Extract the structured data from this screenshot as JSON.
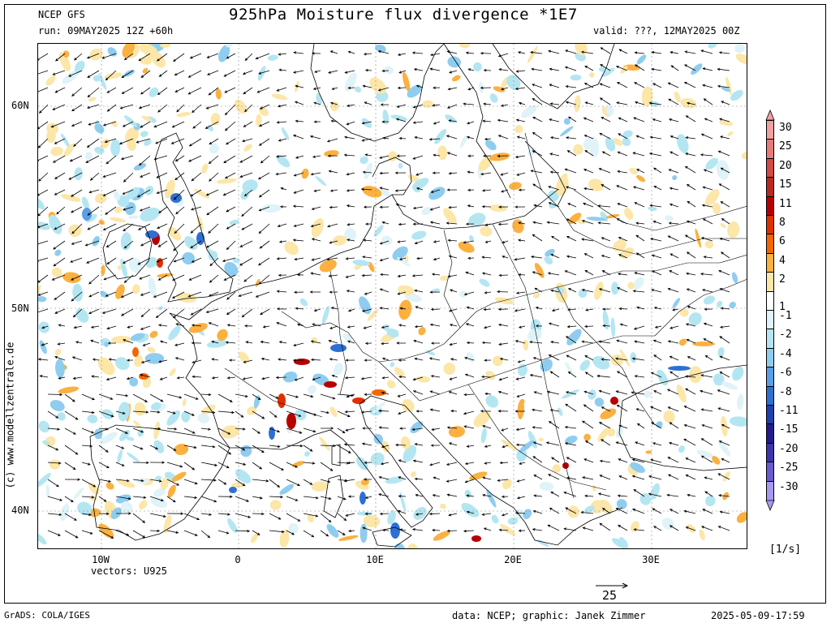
{
  "header": {
    "model": "NCEP GFS",
    "title": "925hPa Moisture flux divergence *1E7",
    "run": "run: 09MAY2025 12Z +60h",
    "valid": "valid: ???, 12MAY2025 00Z"
  },
  "axes": {
    "lat_labels": [
      "60N",
      "50N",
      "40N"
    ],
    "lon_labels": [
      "10W",
      "0",
      "10E",
      "20E",
      "30E"
    ]
  },
  "vectors_label": "vectors: U925",
  "reference_vector": "25",
  "side_credit": "(c) www.modellzentrale.de",
  "colorbar": {
    "unit": "[1/s]",
    "levels": [
      {
        "label": "30",
        "color": "#f0a0a0"
      },
      {
        "label": "25",
        "color": "#e67a78"
      },
      {
        "label": "20",
        "color": "#d44a44"
      },
      {
        "label": "15",
        "color": "#b82820"
      },
      {
        "label": "11",
        "color": "#b80000"
      },
      {
        "label": "8",
        "color": "#e03000"
      },
      {
        "label": "6",
        "color": "#f56500"
      },
      {
        "label": "4",
        "color": "#fbb040"
      },
      {
        "label": "2",
        "color": "#fce6a8"
      },
      {
        "label": "1",
        "color": "#ffffff"
      },
      {
        "label": "-1",
        "color": "#dff3f8"
      },
      {
        "label": "-2",
        "color": "#b4e6f2"
      },
      {
        "label": "-4",
        "color": "#8fcdf0"
      },
      {
        "label": "-6",
        "color": "#5a9ee6"
      },
      {
        "label": "-8",
        "color": "#2e6fd2"
      },
      {
        "label": "-11",
        "color": "#1e3fb0"
      },
      {
        "label": "-15",
        "color": "#231a90"
      },
      {
        "label": "-20",
        "color": "#3a36b0"
      },
      {
        "label": "-25",
        "color": "#6a5ad0"
      },
      {
        "label": "-30",
        "color": "#a898f0"
      }
    ]
  },
  "footer": {
    "left": "GrADS: COLA/IGES",
    "center": "data: NCEP; graphic: Janek Zimmer",
    "right": "2025-05-09-17:59"
  }
}
